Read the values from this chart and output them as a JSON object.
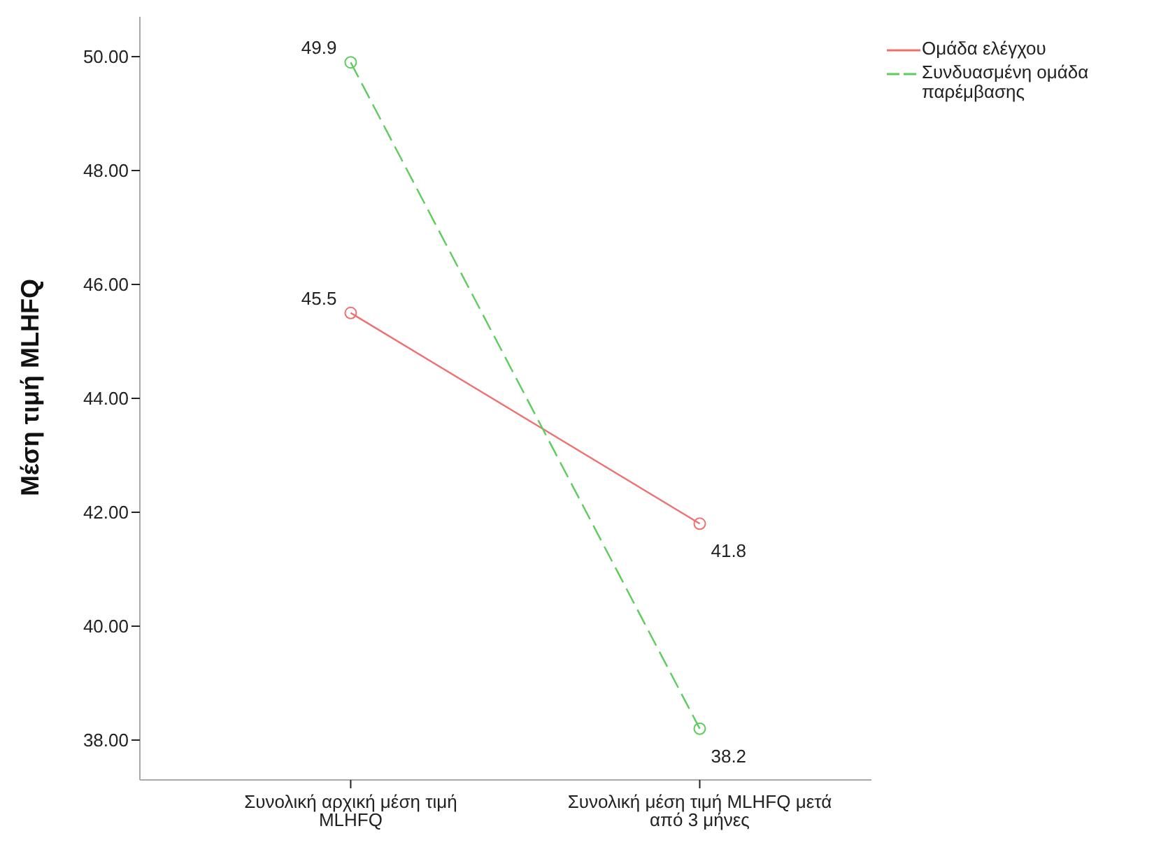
{
  "chart_data": {
    "type": "line",
    "ylabel": "Μέση τιμή MLHFQ",
    "categories": [
      "Συνολική αρχική μέση τιμή MLHFQ",
      "Συνολική μέση τιμή MLHFQ μετά από 3 μήνες"
    ],
    "series": [
      {
        "name": "Ομάδα ελέγχου",
        "color": "#f07070",
        "values": [
          45.5,
          41.8
        ],
        "line_style": "solid"
      },
      {
        "name": "Συνδυασμένη ομάδα παρέμβασης",
        "color": "#5ccc5c",
        "values": [
          49.9,
          38.2
        ],
        "line_style": "dashed"
      }
    ],
    "ylim": [
      37.3,
      50.7
    ],
    "yticks": [
      {
        "value": 38,
        "label": "38.00"
      },
      {
        "value": 40,
        "label": "40.00"
      },
      {
        "value": 42,
        "label": "42.00"
      },
      {
        "value": 44,
        "label": "44.00"
      },
      {
        "value": 46,
        "label": "46.00"
      },
      {
        "value": 48,
        "label": "48.00"
      },
      {
        "value": 50,
        "label": "50.00"
      }
    ],
    "grid": false,
    "legend": "top right",
    "marker": "circle",
    "data_labels": true
  }
}
